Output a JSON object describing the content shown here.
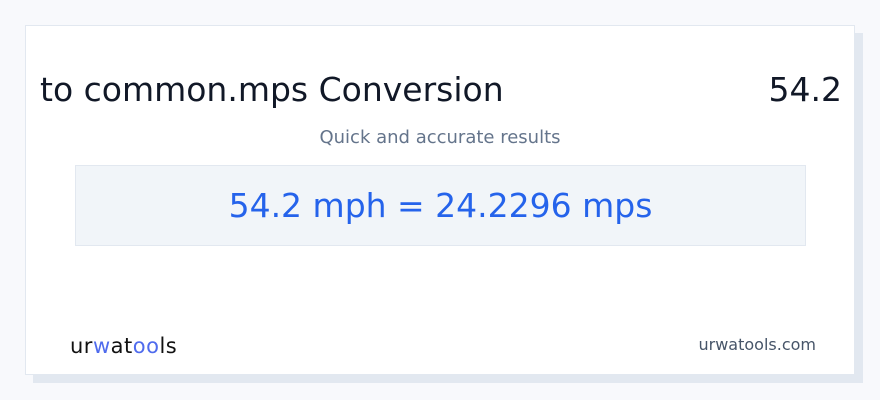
{
  "header": {
    "title": "to common.mps Conversion",
    "value": "54.2"
  },
  "subtitle": "Quick and accurate results",
  "result": "54.2 mph = 24.2296 mps",
  "footer": {
    "logo": {
      "part1": "ur",
      "part2": "w",
      "part3": "at",
      "part4": "oo",
      "part5": "ls"
    },
    "site": "urwatools.com"
  },
  "colors": {
    "accent": "#2563eb",
    "logo_accent": "#4f6bed",
    "result_bg": "#f1f5f9"
  }
}
